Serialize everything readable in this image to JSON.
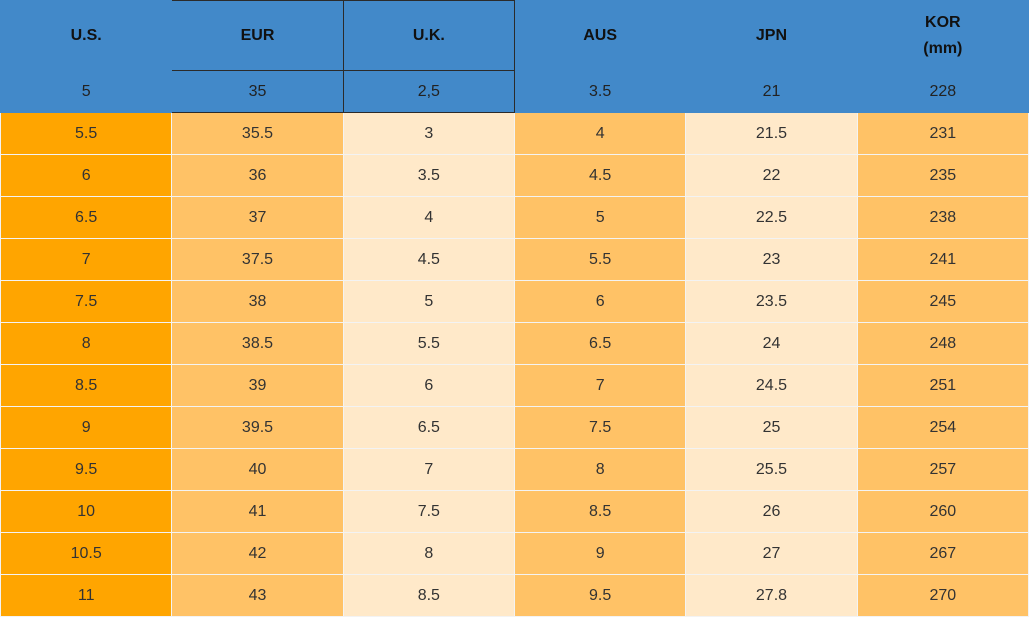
{
  "table": {
    "header": [
      [
        "U.S."
      ],
      [
        "EUR"
      ],
      [
        "U.K."
      ],
      [
        "AUS"
      ],
      [
        "JPN"
      ],
      [
        "KOR",
        "(mm)"
      ]
    ],
    "rows": [
      [
        "5",
        "35",
        "2,5",
        "3.5",
        "21",
        "228"
      ],
      [
        "5.5",
        "35.5",
        "3",
        "4",
        "21.5",
        "231"
      ],
      [
        "6",
        "36",
        "3.5",
        "4.5",
        "22",
        "235"
      ],
      [
        "6.5",
        "37",
        "4",
        "5",
        "22.5",
        "238"
      ],
      [
        "7",
        "37.5",
        "4.5",
        "5.5",
        "23",
        "241"
      ],
      [
        "7.5",
        "38",
        "5",
        "6",
        "23.5",
        "245"
      ],
      [
        "8",
        "38.5",
        "5.5",
        "6.5",
        "24",
        "248"
      ],
      [
        "8.5",
        "39",
        "6",
        "7",
        "24.5",
        "251"
      ],
      [
        "9",
        "39.5",
        "6.5",
        "7.5",
        "25",
        "254"
      ],
      [
        "9.5",
        "40",
        "7",
        "8",
        "25.5",
        "257"
      ],
      [
        "10",
        "41",
        "7.5",
        "8.5",
        "26",
        "260"
      ],
      [
        "10.5",
        "42",
        "8",
        "9",
        "27",
        "267"
      ],
      [
        "11",
        "43",
        "8.5",
        "9.5",
        "27.8",
        "270"
      ]
    ]
  }
}
